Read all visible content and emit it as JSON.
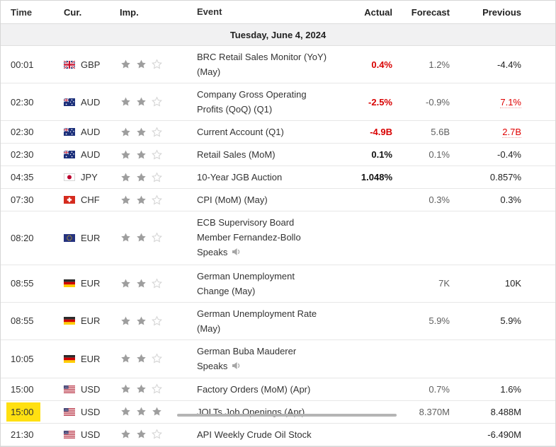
{
  "header": {
    "columns": [
      "Time",
      "Cur.",
      "Imp.",
      "Event",
      "Actual",
      "Forecast",
      "Previous"
    ]
  },
  "date_row": "Tuesday, June 4, 2024",
  "colors": {
    "negative_actual_red": "#d80000",
    "revised_previous_red": "#e00000",
    "time_highlight_yellow": "#ffe011",
    "star_filled_gray": "#9e9e9e",
    "date_row_background": "#f1f1f2"
  },
  "icons": {
    "star_filled": "star-icon",
    "star_empty": "star-outline-icon",
    "speaker": "speaker-icon"
  },
  "rows": [
    {
      "time": "00:01",
      "flag": "gb",
      "currency": "GBP",
      "importance": 2,
      "event": "BRC Retail Sales Monitor (YoY) (May)",
      "actual": "0.4%",
      "actual_style": "red",
      "forecast": "1.2%",
      "previous": "-4.4%",
      "previous_revised": false,
      "speaker": false,
      "highlight": false
    },
    {
      "time": "02:30",
      "flag": "au",
      "currency": "AUD",
      "importance": 2,
      "event": "Company Gross Operating Profits (QoQ) (Q1)",
      "actual": "-2.5%",
      "actual_style": "red",
      "forecast": "-0.9%",
      "previous": "7.1%",
      "previous_revised": true,
      "speaker": false,
      "highlight": false
    },
    {
      "time": "02:30",
      "flag": "au",
      "currency": "AUD",
      "importance": 2,
      "event": "Current Account (Q1)",
      "actual": "-4.9B",
      "actual_style": "red",
      "forecast": "5.6B",
      "previous": "2.7B",
      "previous_revised": true,
      "speaker": false,
      "highlight": false
    },
    {
      "time": "02:30",
      "flag": "au",
      "currency": "AUD",
      "importance": 2,
      "event": "Retail Sales (MoM)",
      "actual": "0.1%",
      "actual_style": "bold",
      "forecast": "0.1%",
      "previous": "-0.4%",
      "previous_revised": false,
      "speaker": false,
      "highlight": false
    },
    {
      "time": "04:35",
      "flag": "jp",
      "currency": "JPY",
      "importance": 2,
      "event": "10-Year JGB Auction",
      "actual": "1.048%",
      "actual_style": "bold",
      "forecast": "",
      "previous": "0.857%",
      "previous_revised": false,
      "speaker": false,
      "highlight": false
    },
    {
      "time": "07:30",
      "flag": "ch",
      "currency": "CHF",
      "importance": 2,
      "event": "CPI (MoM) (May)",
      "actual": "",
      "actual_style": "",
      "forecast": "0.3%",
      "previous": "0.3%",
      "previous_revised": false,
      "speaker": false,
      "highlight": false
    },
    {
      "time": "08:20",
      "flag": "eu",
      "currency": "EUR",
      "importance": 2,
      "event": "ECB Supervisory Board Member Fernandez-Bollo Speaks",
      "actual": "",
      "actual_style": "",
      "forecast": "",
      "previous": "",
      "previous_revised": false,
      "speaker": true,
      "highlight": false
    },
    {
      "time": "08:55",
      "flag": "de",
      "currency": "EUR",
      "importance": 2,
      "event": "German Unemployment Change (May)",
      "actual": "",
      "actual_style": "",
      "forecast": "7K",
      "previous": "10K",
      "previous_revised": false,
      "speaker": false,
      "highlight": false
    },
    {
      "time": "08:55",
      "flag": "de",
      "currency": "EUR",
      "importance": 2,
      "event": "German Unemployment Rate (May)",
      "actual": "",
      "actual_style": "",
      "forecast": "5.9%",
      "previous": "5.9%",
      "previous_revised": false,
      "speaker": false,
      "highlight": false
    },
    {
      "time": "10:05",
      "flag": "de",
      "currency": "EUR",
      "importance": 2,
      "event": "German Buba Mauderer Speaks",
      "actual": "",
      "actual_style": "",
      "forecast": "",
      "previous": "",
      "previous_revised": false,
      "speaker": true,
      "highlight": false
    },
    {
      "time": "15:00",
      "flag": "us",
      "currency": "USD",
      "importance": 2,
      "event": "Factory Orders (MoM) (Apr)",
      "actual": "",
      "actual_style": "",
      "forecast": "0.7%",
      "previous": "1.6%",
      "previous_revised": false,
      "speaker": false,
      "highlight": false
    },
    {
      "time": "15:00",
      "flag": "us",
      "currency": "USD",
      "importance": 3,
      "event": "JOLTs Job Openings (Apr)",
      "actual": "",
      "actual_style": "",
      "forecast": "8.370M",
      "previous": "8.488M",
      "previous_revised": false,
      "speaker": false,
      "highlight": true
    },
    {
      "time": "21:30",
      "flag": "us",
      "currency": "USD",
      "importance": 2,
      "event": "API Weekly Crude Oil Stock",
      "actual": "",
      "actual_style": "",
      "forecast": "",
      "previous": "-6.490M",
      "previous_revised": false,
      "speaker": false,
      "highlight": false
    }
  ]
}
